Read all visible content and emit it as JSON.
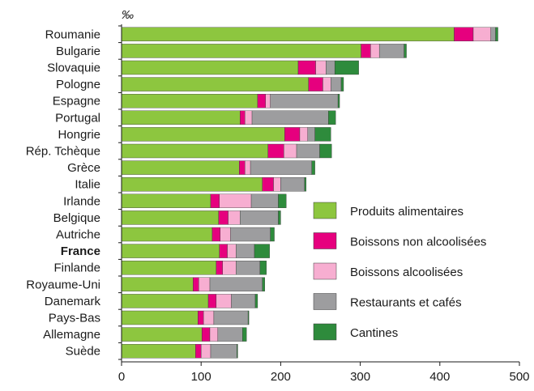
{
  "chart_data": {
    "type": "bar",
    "orientation": "horizontal",
    "stacked": true,
    "unit_label": "‰",
    "categories": [
      "Roumanie",
      "Bulgarie",
      "Slovaquie",
      "Pologne",
      "Espagne",
      "Portugal",
      "Hongrie",
      "Rép. Tchèque",
      "Grèce",
      "Italie",
      "Irlande",
      "Belgique",
      "Autriche",
      "France",
      "Finlande",
      "Royaume-Uni",
      "Danemark",
      "Pays-Bas",
      "Allemagne",
      "Suède"
    ],
    "highlighted_category": "France",
    "series": [
      {
        "name": "Produits alimentaires",
        "color": "#8dc63f",
        "values": [
          418,
          301,
          222,
          235,
          171,
          149,
          205,
          184,
          148,
          177,
          112,
          122,
          114,
          123,
          119,
          90,
          109,
          96,
          101,
          93
        ]
      },
      {
        "name": "Boissons non alcoolisées",
        "color": "#e6007e",
        "values": [
          24,
          12,
          22,
          18,
          10,
          6,
          19,
          20,
          7,
          14,
          11,
          12,
          10,
          10,
          8,
          7,
          10,
          7,
          10,
          7
        ]
      },
      {
        "name": "Boissons alcoolisées",
        "color": "#f7aed1",
        "values": [
          22,
          11,
          13,
          10,
          6,
          9,
          10,
          16,
          7,
          9,
          40,
          15,
          13,
          11,
          17,
          14,
          19,
          13,
          10,
          12
        ]
      },
      {
        "name": "Restaurants et cafés",
        "color": "#9d9d9f",
        "values": [
          6,
          31,
          11,
          13,
          85,
          96,
          9,
          29,
          77,
          30,
          34,
          48,
          50,
          23,
          30,
          66,
          30,
          43,
          31,
          33
        ]
      },
      {
        "name": "Cantines",
        "color": "#2e8b3c",
        "values": [
          3,
          3,
          30,
          3,
          2,
          9,
          20,
          15,
          4,
          2,
          10,
          3,
          5,
          19,
          8,
          3,
          3,
          1,
          5,
          1
        ]
      }
    ],
    "xlim": [
      0,
      500
    ],
    "xticks": [
      0,
      100,
      200,
      300,
      400,
      500
    ],
    "grid": false,
    "legend_position": "right"
  }
}
